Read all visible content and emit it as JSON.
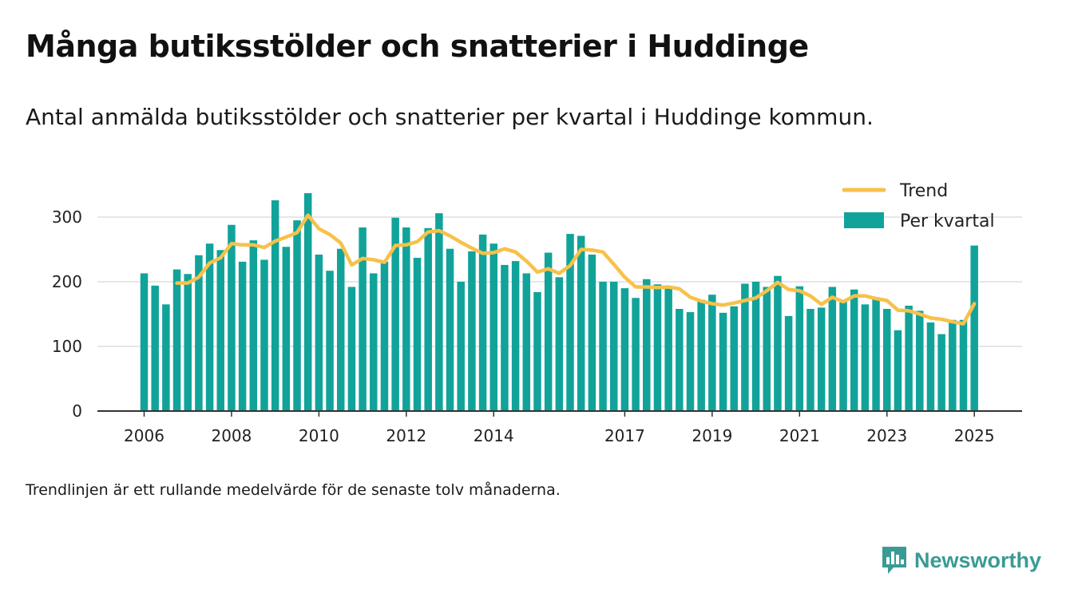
{
  "header": {
    "title": "Många butiksstölder och snatterier i Huddinge",
    "subtitle": "Antal anmälda butiksstölder och snatterier per kvartal i Huddinge kommun."
  },
  "footer": {
    "note": "Trendlinjen är ett rullande medelvärde för de senaste tolv månaderna.",
    "brand": "Newsworthy",
    "brand_icon": "bar-chart-speech-bubble-icon"
  },
  "colors": {
    "bars": "#11a39a",
    "trend": "#f7c14a",
    "grid": "#dddddd",
    "axis": "#333333",
    "brand": "#3a9b94"
  },
  "chart_data": {
    "type": "bar",
    "legend": {
      "position": "top-right",
      "entries": [
        "Trend",
        "Per kvartal"
      ]
    },
    "grid": true,
    "ylim": [
      0,
      340
    ],
    "yticks": [
      0,
      100,
      200,
      300
    ],
    "xticks": [
      "2006",
      "2008",
      "2010",
      "2012",
      "2014",
      "2017",
      "2019",
      "2021",
      "2023",
      "2025"
    ],
    "x_start": "2006 Q1",
    "x_end": "2025 Q1",
    "series": [
      {
        "name": "Per kvartal",
        "kind": "bar",
        "values": [
          213,
          194,
          165,
          219,
          212,
          241,
          259,
          249,
          288,
          231,
          264,
          234,
          326,
          254,
          295,
          337,
          242,
          217,
          251,
          192,
          284,
          213,
          231,
          299,
          284,
          237,
          283,
          306,
          251,
          200,
          247,
          273,
          259,
          226,
          232,
          213,
          184,
          245,
          207,
          274,
          271,
          242,
          200,
          200,
          190,
          175,
          204,
          196,
          193,
          158,
          153,
          172,
          180,
          152,
          162,
          197,
          200,
          192,
          209,
          147,
          193,
          158,
          160,
          192,
          170,
          188,
          165,
          176,
          158,
          125,
          163,
          155,
          137,
          119,
          141,
          141,
          256
        ]
      },
      {
        "name": "Trend",
        "kind": "line",
        "values": [
          null,
          null,
          null,
          198,
          198,
          207,
          229,
          237,
          259,
          257,
          257,
          253,
          263,
          269,
          276,
          303,
          282,
          273,
          260,
          226,
          236,
          234,
          230,
          256,
          257,
          262,
          277,
          279,
          271,
          261,
          252,
          244,
          245,
          251,
          246,
          232,
          215,
          220,
          213,
          225,
          250,
          249,
          246,
          227,
          207,
          192,
          192,
          191,
          192,
          189,
          176,
          170,
          166,
          164,
          167,
          171,
          175,
          186,
          199,
          188,
          186,
          178,
          165,
          176,
          169,
          178,
          178,
          174,
          171,
          156,
          155,
          150,
          144,
          142,
          138,
          135,
          166
        ]
      }
    ]
  }
}
